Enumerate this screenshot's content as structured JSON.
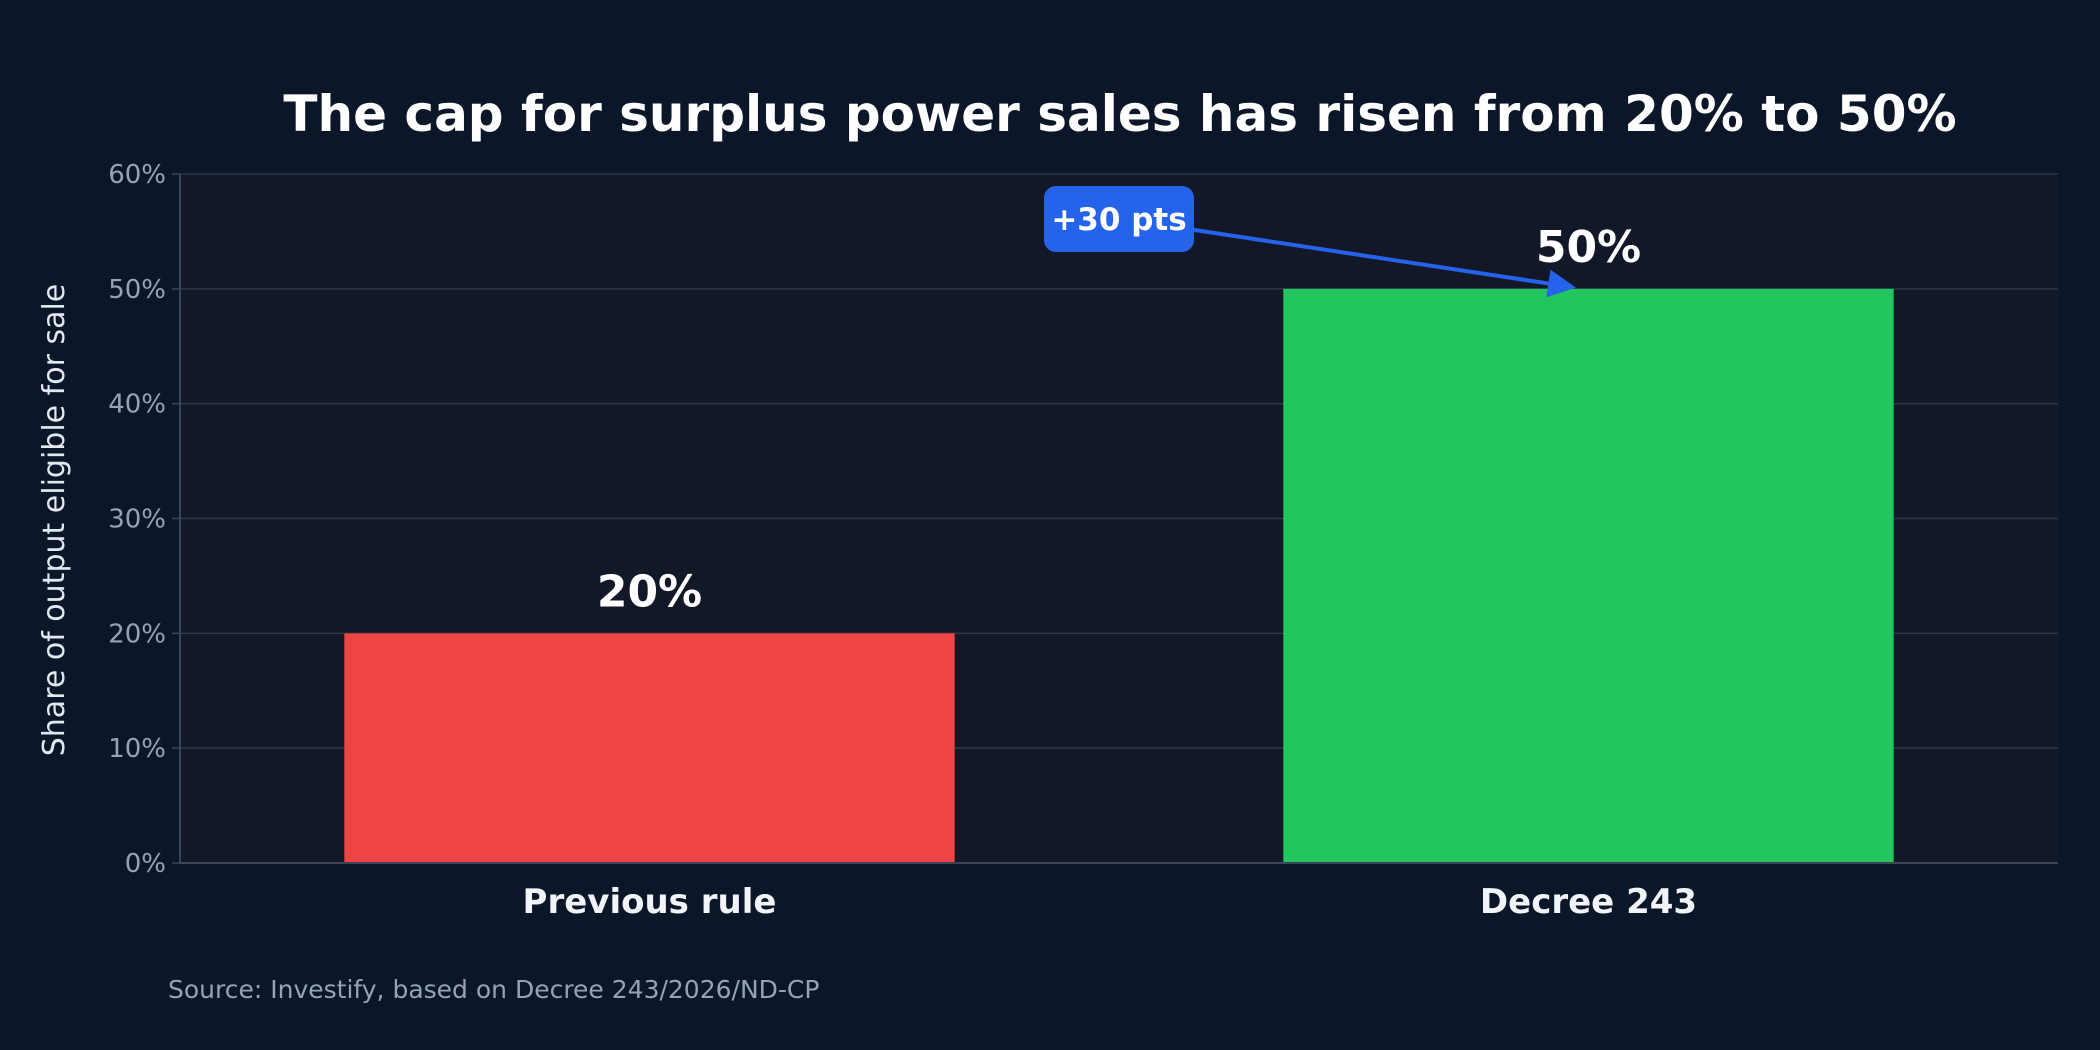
{
  "chart_data": {
    "type": "bar",
    "title": "The cap for surplus power sales has risen from 20% to 50%",
    "xlabel": "",
    "ylabel": "Share of output eligible for sale",
    "categories": [
      "Previous rule",
      "Decree 243"
    ],
    "values": [
      20,
      50
    ],
    "value_labels": [
      "20%",
      "50%"
    ],
    "bar_colors": [
      "#ef4444",
      "#22c55e"
    ],
    "ylim": [
      0,
      60
    ],
    "yticks": [
      0,
      10,
      20,
      30,
      40,
      50,
      60
    ],
    "ytick_labels": [
      "0%",
      "10%",
      "20%",
      "30%",
      "40%",
      "50%",
      "60%"
    ],
    "grid": true,
    "legend": "none",
    "annotation": {
      "text": "+30 pts",
      "color": "#2563eb",
      "points_to": "Decree 243"
    },
    "source": "Source: Investify, based on Decree 243/2026/ND-CP"
  },
  "colors": {
    "background": "#0b1628",
    "plot_background": "#131829",
    "grid": "#2c3748",
    "axis": "#3a4658"
  }
}
